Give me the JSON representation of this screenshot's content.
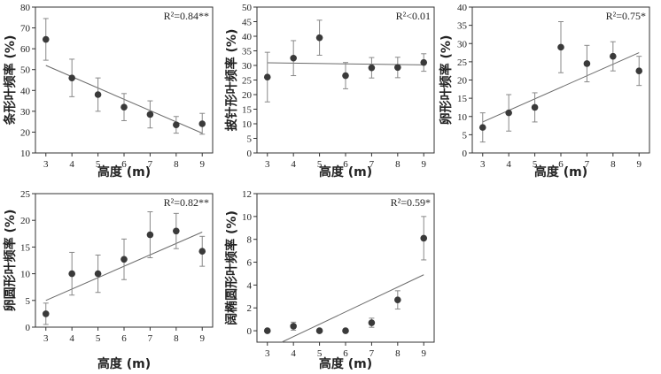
{
  "chart_data": [
    {
      "type": "scatter",
      "id": "p1",
      "ylabel": "条形叶频率 (%)",
      "xlabel": "高度 (m)",
      "r2_label": "R²=0.84**",
      "xlim": [
        2.6,
        9.4
      ],
      "ylim": [
        10,
        80
      ],
      "yticks": [
        10,
        20,
        30,
        40,
        50,
        60,
        70,
        80
      ],
      "xticks": [
        3,
        4,
        5,
        6,
        7,
        8,
        9
      ],
      "x": [
        3,
        4,
        5,
        6,
        7,
        8,
        9
      ],
      "y": [
        64.5,
        46,
        38,
        32,
        28.5,
        23.5,
        24
      ],
      "err_low": [
        10,
        9,
        8,
        6.5,
        6.5,
        4,
        5
      ],
      "err_high": [
        10,
        9,
        8,
        6.5,
        6.5,
        4,
        5
      ],
      "fit": {
        "x1": 3,
        "y1": 52,
        "x2": 9,
        "y2": 19.5
      }
    },
    {
      "type": "scatter",
      "id": "p2",
      "ylabel": "披针形叶频率 (%)",
      "xlabel": "高度 (m)",
      "r2_label": "R²<0.01",
      "xlim": [
        2.6,
        9.4
      ],
      "ylim": [
        0,
        50
      ],
      "yticks": [
        0,
        5,
        10,
        15,
        20,
        25,
        30,
        35,
        40,
        45,
        50
      ],
      "xticks": [
        3,
        4,
        5,
        6,
        7,
        8,
        9
      ],
      "x": [
        3,
        4,
        5,
        6,
        7,
        8,
        9
      ],
      "y": [
        26,
        32.5,
        39.5,
        26.5,
        29.2,
        29.3,
        31
      ],
      "err_low": [
        8.5,
        6,
        6,
        4.5,
        3.5,
        3.5,
        3
      ],
      "err_high": [
        8.5,
        6,
        6,
        4.5,
        3.5,
        3.5,
        3
      ],
      "fit": {
        "x1": 3,
        "y1": 30.9,
        "x2": 9,
        "y2": 30.2
      }
    },
    {
      "type": "scatter",
      "id": "p3",
      "ylabel": "卵形叶频率 (%)",
      "xlabel": "高度 (m)",
      "r2_label": "R²=0.75*",
      "xlim": [
        2.6,
        9.4
      ],
      "ylim": [
        0,
        40
      ],
      "yticks": [
        0,
        5,
        10,
        15,
        20,
        25,
        30,
        35,
        40
      ],
      "xticks": [
        3,
        4,
        5,
        6,
        7,
        8,
        9
      ],
      "x": [
        3,
        4,
        5,
        6,
        7,
        8,
        9
      ],
      "y": [
        7,
        11,
        12.5,
        29,
        24.5,
        26.5,
        22.5
      ],
      "err_low": [
        4,
        5,
        4,
        7,
        5,
        4,
        4
      ],
      "err_high": [
        4,
        5,
        4,
        7,
        5,
        4,
        4
      ],
      "fit": {
        "x1": 3,
        "y1": 8.5,
        "x2": 9,
        "y2": 27.5
      }
    },
    {
      "type": "scatter",
      "id": "p4",
      "ylabel": "卵圆形叶频率 (%)",
      "xlabel": "高度 (m)",
      "r2_label": "R²=0.82**",
      "xlim": [
        2.6,
        9.4
      ],
      "ylim": [
        0,
        25
      ],
      "yticks": [
        0,
        5,
        10,
        15,
        20,
        25
      ],
      "xticks": [
        3,
        4,
        5,
        6,
        7,
        8,
        9
      ],
      "x": [
        3,
        4,
        5,
        6,
        7,
        8,
        9
      ],
      "y": [
        2.5,
        10,
        10,
        12.7,
        17.3,
        18,
        14.2
      ],
      "err_low": [
        2,
        4,
        3.5,
        3.8,
        4.3,
        3.3,
        2.8
      ],
      "err_high": [
        2,
        4,
        3.5,
        3.8,
        4.3,
        3.3,
        2.8
      ],
      "fit": {
        "x1": 3,
        "y1": 5,
        "x2": 9,
        "y2": 17.8
      }
    },
    {
      "type": "scatter",
      "id": "p5",
      "ylabel": "阔椭圆形叶频率 (%)",
      "xlabel": "高度 (m)",
      "r2_label": "R²=0.59*",
      "xlim": [
        2.6,
        9.4
      ],
      "ylim": [
        -1,
        12
      ],
      "yticks": [
        0,
        2,
        4,
        6,
        8,
        10,
        12
      ],
      "xticks": [
        3,
        4,
        5,
        6,
        7,
        8,
        9
      ],
      "x": [
        3,
        4,
        5,
        6,
        7,
        8,
        9
      ],
      "y": [
        0,
        0.4,
        0,
        0,
        0.7,
        2.7,
        8.1
      ],
      "err_low": [
        0,
        0.35,
        0,
        0,
        0.4,
        0.8,
        1.9
      ],
      "err_high": [
        0,
        0.35,
        0,
        0,
        0.4,
        0.8,
        1.9
      ],
      "fit": {
        "x1": 3.55,
        "y1": -1,
        "x2": 9,
        "y2": 4.9
      }
    }
  ]
}
